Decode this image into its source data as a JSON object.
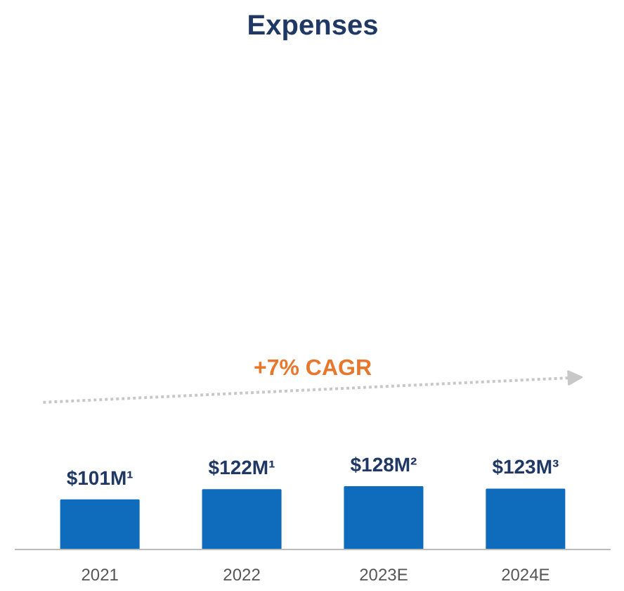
{
  "chart_data": {
    "type": "bar",
    "title": "Expenses",
    "categories": [
      "2021",
      "2022",
      "2023E",
      "2024E"
    ],
    "values": [
      101,
      122,
      128,
      123
    ],
    "value_labels": [
      "$101M¹",
      "$122M¹",
      "$128M²",
      "$123M³"
    ],
    "color": "#0f6cbd",
    "annotations": [
      "+7% CAGR"
    ]
  }
}
